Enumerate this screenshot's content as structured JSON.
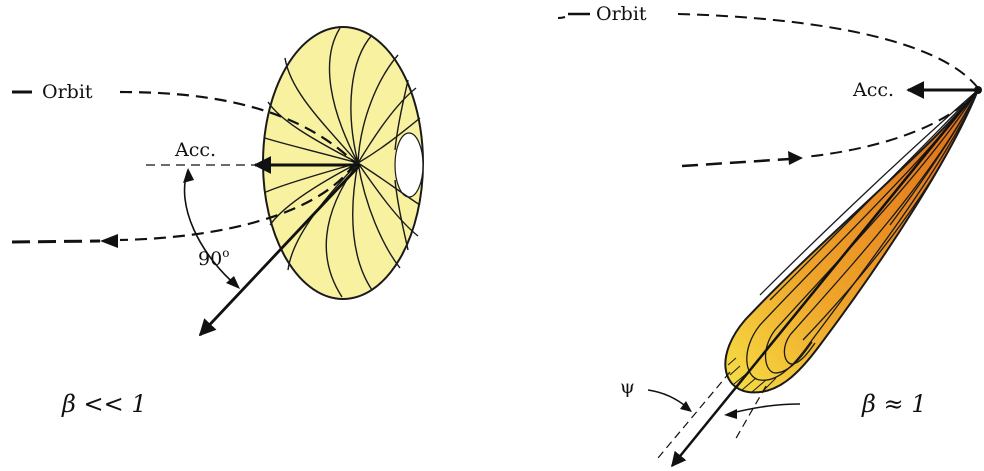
{
  "left_panel": {
    "orbit_label": "Orbit",
    "acc_label": "Acc.",
    "angle_label": "90",
    "angle_unit": "o",
    "beta_label": "β << 1",
    "colors": {
      "fill": "#f7f1a0",
      "edge": "#1a1a1a"
    }
  },
  "right_panel": {
    "orbit_label": "Orbit",
    "acc_label": "Acc.",
    "psi_label": "ψ",
    "beta_label": "β ≈ 1",
    "colors": {
      "outer": "#f4d420",
      "inner": "#e8831a",
      "core": "#d9661a"
    }
  }
}
